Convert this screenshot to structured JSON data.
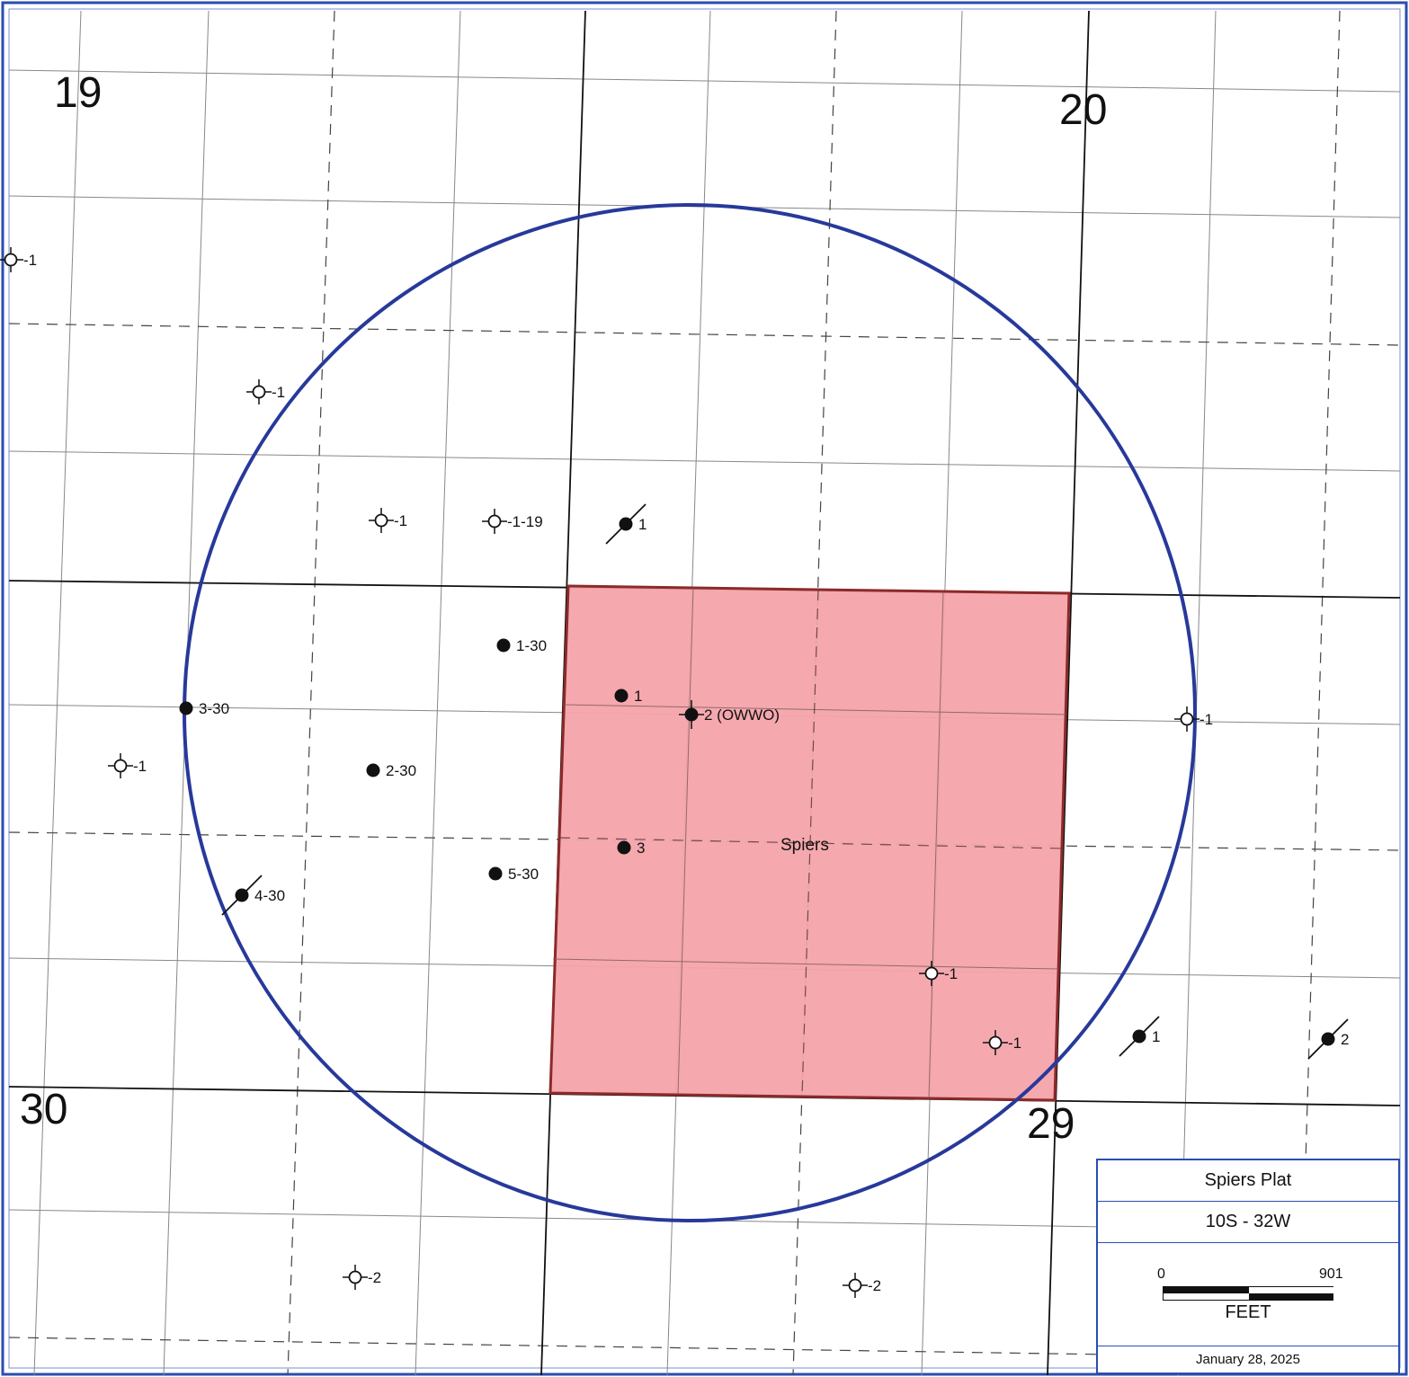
{
  "sections": [
    {
      "number": "19"
    },
    {
      "number": "20"
    },
    {
      "number": "30"
    },
    {
      "number": "29"
    }
  ],
  "lease": {
    "name": "Spiers",
    "fill_color": "#f4a3aa",
    "border_color": "#8b2a2a"
  },
  "radius_circle": {
    "color": "#27399a"
  },
  "wells": [
    {
      "label": "1",
      "status": "dry-hole"
    },
    {
      "label": "1",
      "status": "dry-hole"
    },
    {
      "label": "1",
      "status": "dry-hole"
    },
    {
      "label": "1-19",
      "status": "dry-hole"
    },
    {
      "label": "1",
      "status": "plugged-oil"
    },
    {
      "label": "1-30",
      "status": "oil"
    },
    {
      "label": "1",
      "status": "oil"
    },
    {
      "label": "2 (OWWO)",
      "status": "oil-reentry"
    },
    {
      "label": "3-30",
      "status": "oil"
    },
    {
      "label": "1",
      "status": "dry-hole"
    },
    {
      "label": "2-30",
      "status": "oil"
    },
    {
      "label": "3",
      "status": "oil"
    },
    {
      "label": "5-30",
      "status": "oil"
    },
    {
      "label": "4-30",
      "status": "plugged-oil"
    },
    {
      "label": "1",
      "status": "dry-hole"
    },
    {
      "label": "1",
      "status": "dry-hole"
    },
    {
      "label": "1",
      "status": "dry-hole"
    },
    {
      "label": "1",
      "status": "plugged-oil"
    },
    {
      "label": "2",
      "status": "plugged-oil"
    },
    {
      "label": "2",
      "status": "dry-hole"
    },
    {
      "label": "2",
      "status": "dry-hole"
    }
  ],
  "legend": {
    "title": "Spiers Plat",
    "township_range": "10S - 32W",
    "scale_start": "0",
    "scale_end": "901",
    "scale_unit": "FEET",
    "date": "January 28, 2025"
  },
  "colors": {
    "frame": "#2a4db0",
    "grid": "#666666",
    "section_line": "#111111"
  }
}
